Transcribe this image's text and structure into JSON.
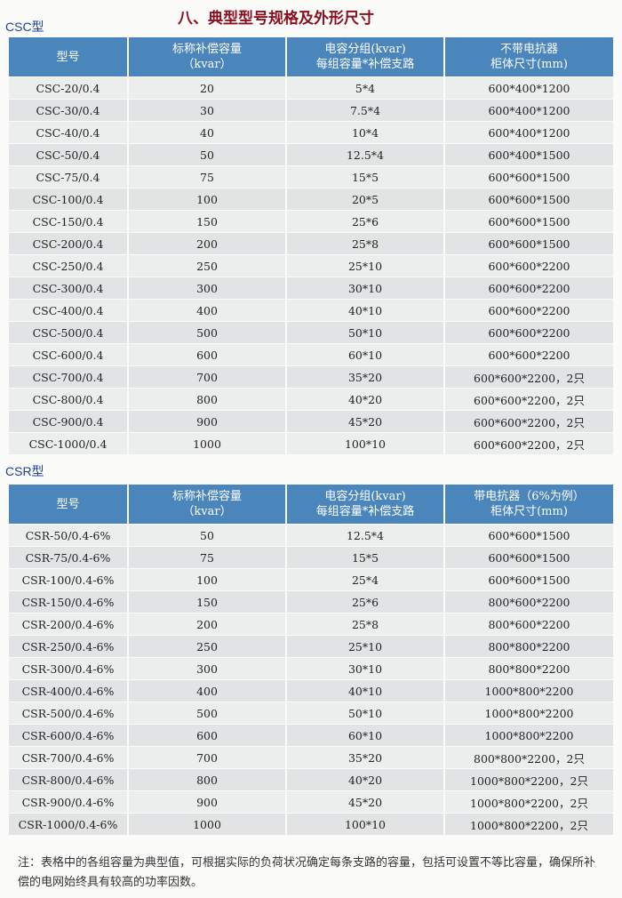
{
  "title": "八、典型型号规格及外形尺寸",
  "csc": {
    "label": "CSC型",
    "headers": [
      "型号",
      "标称补偿容量\n（kvar）",
      "电容分组(kvar)\n每组容量*补偿支路",
      "不带电抗器\n柜体尺寸(mm)"
    ],
    "rows": [
      [
        "CSC-20/0.4",
        "20",
        "5*4",
        "600*400*1200"
      ],
      [
        "CSC-30/0.4",
        "30",
        "7.5*4",
        "600*400*1200"
      ],
      [
        "CSC-40/0.4",
        "40",
        "10*4",
        "600*400*1200"
      ],
      [
        "CSC-50/0.4",
        "50",
        "12.5*4",
        "600*400*1500"
      ],
      [
        "CSC-75/0.4",
        "75",
        "15*5",
        "600*600*1500"
      ],
      [
        "CSC-100/0.4",
        "100",
        "20*5",
        "600*600*1500"
      ],
      [
        "CSC-150/0.4",
        "150",
        "25*6",
        "600*600*1500"
      ],
      [
        "CSC-200/0.4",
        "200",
        "25*8",
        "600*600*1500"
      ],
      [
        "CSC-250/0.4",
        "250",
        "25*10",
        "600*600*2200"
      ],
      [
        "CSC-300/0.4",
        "300",
        "30*10",
        "600*600*2200"
      ],
      [
        "CSC-400/0.4",
        "400",
        "40*10",
        "600*600*2200"
      ],
      [
        "CSC-500/0.4",
        "500",
        "50*10",
        "600*600*2200"
      ],
      [
        "CSC-600/0.4",
        "600",
        "60*10",
        "600*600*2200"
      ],
      [
        "CSC-700/0.4",
        "700",
        "35*20",
        "600*600*2200，2只"
      ],
      [
        "CSC-800/0.4",
        "800",
        "40*20",
        "600*600*2200，2只"
      ],
      [
        "CSC-900/0.4",
        "900",
        "45*20",
        "600*600*2200，2只"
      ],
      [
        "CSC-1000/0.4",
        "1000",
        "100*10",
        "600*600*2200，2只"
      ]
    ]
  },
  "csr": {
    "label": "CSR型",
    "headers": [
      "型号",
      "标称补偿容量\n（kvar）",
      "电容分组(kvar)\n每组容量*补偿支路",
      "带电抗器（6%为例）\n柜体尺寸(mm)"
    ],
    "rows": [
      [
        "CSR-50/0.4-6%",
        "50",
        "12.5*4",
        "600*600*1500"
      ],
      [
        "CSR-75/0.4-6%",
        "75",
        "15*5",
        "600*600*1500"
      ],
      [
        "CSR-100/0.4-6%",
        "100",
        "25*4",
        "600*600*1500"
      ],
      [
        "CSR-150/0.4-6%",
        "150",
        "25*6",
        "800*600*2200"
      ],
      [
        "CSR-200/0.4-6%",
        "200",
        "25*8",
        "800*600*2200"
      ],
      [
        "CSR-250/0.4-6%",
        "250",
        "25*10",
        "800*800*2200"
      ],
      [
        "CSR-300/0.4-6%",
        "300",
        "30*10",
        "800*800*2200"
      ],
      [
        "CSR-400/0.4-6%",
        "400",
        "40*10",
        "1000*800*2200"
      ],
      [
        "CSR-500/0.4-6%",
        "500",
        "50*10",
        "1000*800*2200"
      ],
      [
        "CSR-600/0.4-6%",
        "600",
        "60*10",
        "1000*800*2200"
      ],
      [
        "CSR-700/0.4-6%",
        "700",
        "35*20",
        "800*800*2200，2只"
      ],
      [
        "CSR-800/0.4-6%",
        "800",
        "40*20",
        "1000*800*2200，2只"
      ],
      [
        "CSR-900/0.4-6%",
        "900",
        "45*20",
        "1000*800*2200，2只"
      ],
      [
        "CSR-1000/0.4-6%",
        "1000",
        "100*10",
        "1000*800*2200，2只"
      ]
    ]
  },
  "note": "注：表格中的各组容量为典型值，可根据实际的负荷状况确定每条支路的容量，包括可设置不等比容量，确保所补偿的电网始终具有较高的功率因数。"
}
